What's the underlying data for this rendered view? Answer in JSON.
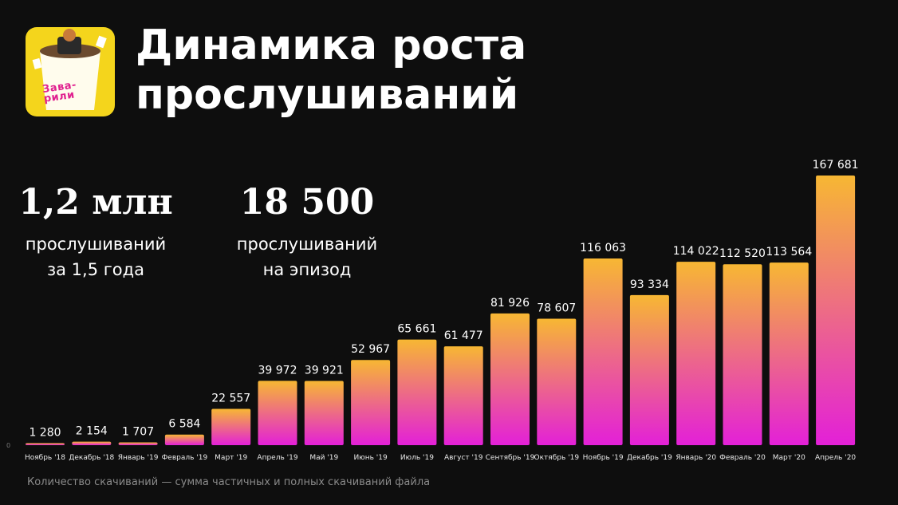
{
  "title": {
    "line1": "Динамика роста",
    "line2": "прослушиваний"
  },
  "logo": {
    "line1": "Зава-",
    "line2": "рили"
  },
  "stats": [
    {
      "value": "1,2 млн",
      "label_line1": "прослушиваний",
      "label_line2": "за 1,5 года"
    },
    {
      "value": "18 500",
      "label_line1": "прослушиваний",
      "label_line2": "на эпизод"
    }
  ],
  "footnote": "Количество скачиваний — сумма частичных и полных скачиваний файла",
  "colors": {
    "bar_top": "#f7b733",
    "bar_bottom": "#e320d8",
    "background": "#0e0e0e",
    "logo_bg": "#f4d51c",
    "logo_text": "#e0208f"
  },
  "chart_data": {
    "type": "bar",
    "categories": [
      "Ноябрь '18",
      "Декабрь '18",
      "Январь '19",
      "Февраль '19",
      "Март '19",
      "Апрель '19",
      "Май '19",
      "Июнь '19",
      "Июль '19",
      "Август '19",
      "Сентябрь '19",
      "Октябрь '19",
      "Ноябрь '19",
      "Декабрь '19",
      "Январь '20",
      "Февраль '20",
      "Март '20",
      "Апрель '20"
    ],
    "values": [
      1280,
      2154,
      1707,
      6584,
      22557,
      39972,
      39921,
      52967,
      65661,
      61477,
      81926,
      78607,
      116063,
      93334,
      114022,
      112520,
      113564,
      167681
    ],
    "value_labels": [
      "1 280",
      "2 154",
      "1 707",
      "6 584",
      "22 557",
      "39 972",
      "39 921",
      "52 967",
      "65 661",
      "61 477",
      "81 926",
      "78 607",
      "116 063",
      "93 334",
      "114 022",
      "112 520",
      "113 564",
      "167 681"
    ],
    "title": "",
    "xlabel": "",
    "ylabel": "",
    "ylim": [
      0,
      170000
    ],
    "grid": false,
    "legend": false
  }
}
